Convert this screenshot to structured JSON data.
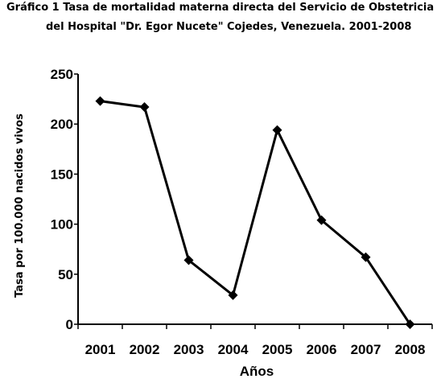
{
  "title_line1": "Gráfico 1 Tasa de mortalidad materna directa del Servicio de Obstetricia",
  "title_line2": "del Hospital \"Dr. Egor Nucete\" Cojedes, Venezuela. 2001-2008",
  "colors": {
    "line": "#000000",
    "axis": "#000000",
    "background": "#ffffff"
  },
  "chart_data": {
    "type": "line",
    "title": "Gráfico 1 Tasa de mortalidad materna directa del Servicio de Obstetricia del Hospital \"Dr. Egor Nucete\" Cojedes, Venezuela. 2001-2008",
    "xlabel": "Años",
    "ylabel": "Tasa por 100.000 nacidos vivos",
    "categories": [
      "2001",
      "2002",
      "2003",
      "2004",
      "2005",
      "2006",
      "2007",
      "2008"
    ],
    "values": [
      223,
      217,
      64,
      29,
      194,
      104,
      67,
      0
    ],
    "ylim": [
      0,
      250
    ],
    "yticks": [
      "0",
      "50",
      "100",
      "150",
      "200",
      "250"
    ],
    "grid": false,
    "legend": "none",
    "marker": "diamond"
  }
}
